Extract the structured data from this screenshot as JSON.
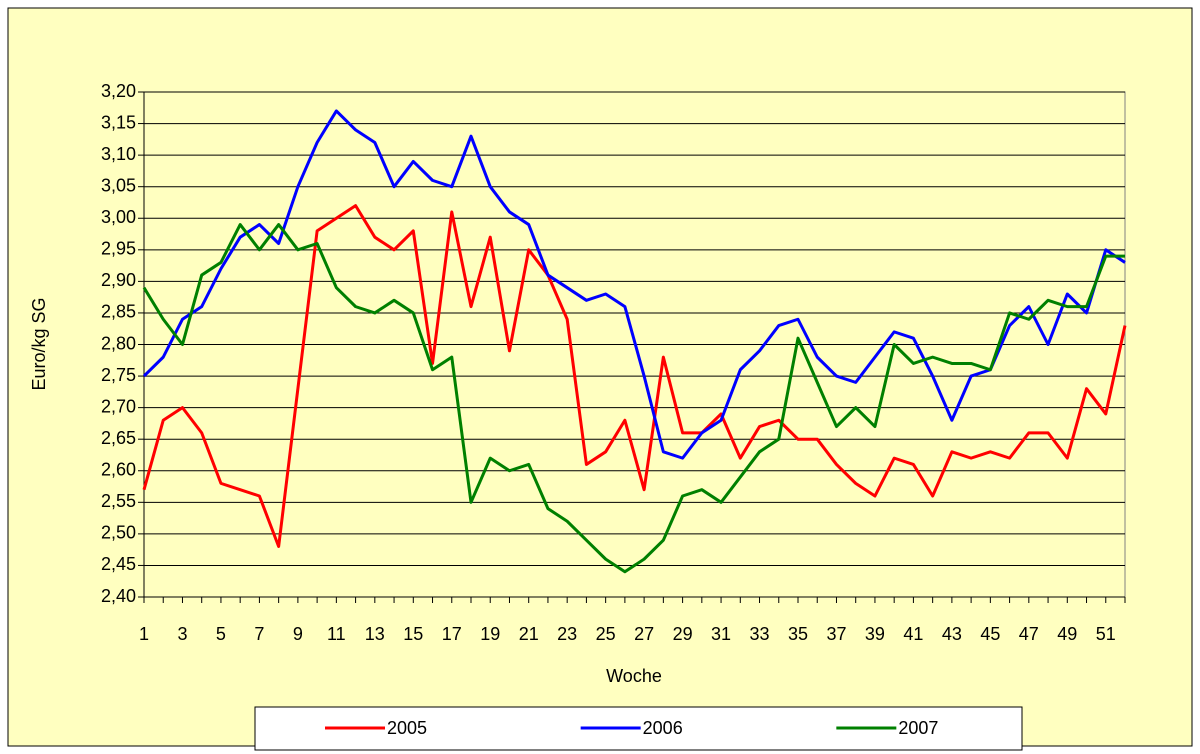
{
  "chart_data": {
    "type": "line",
    "xlabel": "Woche",
    "ylabel": "Euro/kg SG",
    "categories": [
      "1",
      null,
      "3",
      null,
      "5",
      null,
      "7",
      null,
      "9",
      null,
      "11",
      null,
      "13",
      null,
      "15",
      null,
      "17",
      null,
      "19",
      null,
      "21",
      null,
      "23",
      null,
      "25",
      null,
      "27",
      null,
      "29",
      null,
      "31",
      null,
      "33",
      null,
      "35",
      null,
      "37",
      null,
      "39",
      null,
      "41",
      null,
      "43",
      null,
      "45",
      null,
      "47",
      null,
      "49",
      null,
      "51",
      null
    ],
    "series": [
      {
        "name": "2005",
        "color": "#ff0000",
        "values": [
          2.57,
          2.68,
          2.7,
          2.66,
          2.58,
          2.57,
          2.56,
          2.48,
          2.73,
          2.98,
          3.0,
          3.02,
          2.97,
          2.95,
          2.98,
          2.77,
          3.01,
          2.86,
          2.97,
          2.79,
          2.95,
          2.91,
          2.84,
          2.61,
          2.63,
          2.68,
          2.57,
          2.78,
          2.66,
          2.66,
          2.69,
          2.62,
          2.67,
          2.68,
          2.65,
          2.65,
          2.61,
          2.58,
          2.56,
          2.62,
          2.61,
          2.56,
          2.63,
          2.62,
          2.63,
          2.62,
          2.66,
          2.66,
          2.62,
          2.73,
          2.69,
          2.83
        ]
      },
      {
        "name": "2006",
        "color": "#0000ff",
        "values": [
          2.75,
          2.78,
          2.84,
          2.86,
          2.92,
          2.97,
          2.99,
          2.96,
          3.05,
          3.12,
          3.17,
          3.14,
          3.12,
          3.05,
          3.09,
          3.06,
          3.05,
          3.13,
          3.05,
          3.01,
          2.99,
          2.91,
          2.89,
          2.87,
          2.88,
          2.86,
          2.75,
          2.63,
          2.62,
          2.66,
          2.68,
          2.76,
          2.79,
          2.83,
          2.84,
          2.78,
          2.75,
          2.74,
          2.78,
          2.82,
          2.81,
          2.75,
          2.68,
          2.75,
          2.76,
          2.83,
          2.86,
          2.8,
          2.88,
          2.85,
          2.95,
          2.93
        ]
      },
      {
        "name": "2007",
        "color": "#008000",
        "values": [
          2.89,
          2.84,
          2.8,
          2.91,
          2.93,
          2.99,
          2.95,
          2.99,
          2.95,
          2.96,
          2.89,
          2.86,
          2.85,
          2.87,
          2.85,
          2.76,
          2.78,
          2.55,
          2.62,
          2.6,
          2.61,
          2.54,
          2.52,
          2.49,
          2.46,
          2.44,
          2.46,
          2.49,
          2.56,
          2.57,
          2.55,
          2.59,
          2.63,
          2.65,
          2.81,
          2.74,
          2.67,
          2.7,
          2.67,
          2.8,
          2.77,
          2.78,
          2.77,
          2.77,
          2.76,
          2.85,
          2.84,
          2.87,
          2.86,
          2.86,
          2.94,
          2.94
        ]
      }
    ],
    "ylim": [
      2.4,
      3.2
    ],
    "yticks": [
      {
        "value": 2.4,
        "label": "2,40"
      },
      {
        "value": 2.45,
        "label": "2,45"
      },
      {
        "value": 2.5,
        "label": "2,50"
      },
      {
        "value": 2.55,
        "label": "2,55"
      },
      {
        "value": 2.6,
        "label": "2,60"
      },
      {
        "value": 2.65,
        "label": "2,65"
      },
      {
        "value": 2.7,
        "label": "2,70"
      },
      {
        "value": 2.75,
        "label": "2,75"
      },
      {
        "value": 2.8,
        "label": "2,80"
      },
      {
        "value": 2.85,
        "label": "2,85"
      },
      {
        "value": 2.9,
        "label": "2,90"
      },
      {
        "value": 2.95,
        "label": "2,95"
      },
      {
        "value": 3.0,
        "label": "3,00"
      },
      {
        "value": 3.05,
        "label": "3,05"
      },
      {
        "value": 3.1,
        "label": "3,10"
      },
      {
        "value": 3.15,
        "label": "3,15"
      },
      {
        "value": 3.2,
        "label": "3,20"
      }
    ],
    "grid": true,
    "legend": "bottom"
  }
}
